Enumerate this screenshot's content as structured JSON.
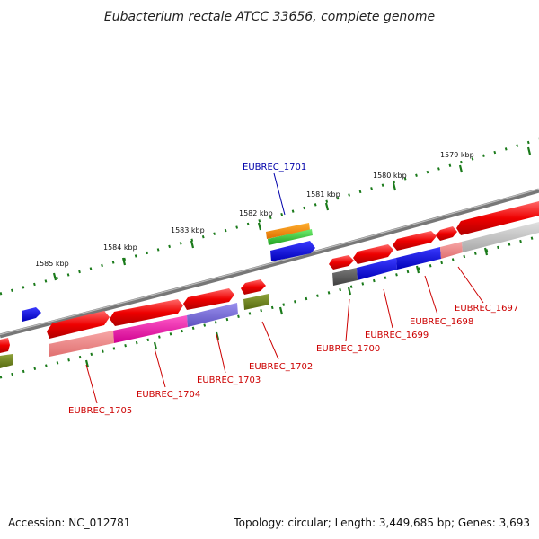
{
  "title": "Eubacterium rectale ATCC 33656, complete genome",
  "footer": {
    "accession": "Accession: NC_012781",
    "topology": "Topology: circular; Length: 3,449,685 bp; Genes: 3,693"
  },
  "colors": {
    "label_red": "#cc0000",
    "label_blue": "#0000aa",
    "backbone": "#777777",
    "ticks": "#1a7a1a"
  },
  "scale_labels": [
    "1579 kbp",
    "1580 kbp",
    "1581 kbp",
    "1582 kbp",
    "1583 kbp",
    "1584 kbp",
    "1585 kbp"
  ],
  "genes": [
    {
      "id": "EUBREC_1697",
      "label": "EUBREC_1697",
      "color": "#cc0000"
    },
    {
      "id": "EUBREC_1698",
      "label": "EUBREC_1698",
      "color": "#cc0000"
    },
    {
      "id": "EUBREC_1699",
      "label": "EUBREC_1699",
      "color": "#cc0000"
    },
    {
      "id": "EUBREC_1700",
      "label": "EUBREC_1700",
      "color": "#cc0000"
    },
    {
      "id": "EUBREC_1701",
      "label": "EUBREC_1701",
      "color": "#0000aa"
    },
    {
      "id": "EUBREC_1702",
      "label": "EUBREC_1702",
      "color": "#cc0000"
    },
    {
      "id": "EUBREC_1703",
      "label": "EUBREC_1703",
      "color": "#cc0000"
    },
    {
      "id": "EUBREC_1704",
      "label": "EUBREC_1704",
      "color": "#cc0000"
    },
    {
      "id": "EUBREC_1705",
      "label": "EUBREC_1705",
      "color": "#cc0000"
    }
  ]
}
